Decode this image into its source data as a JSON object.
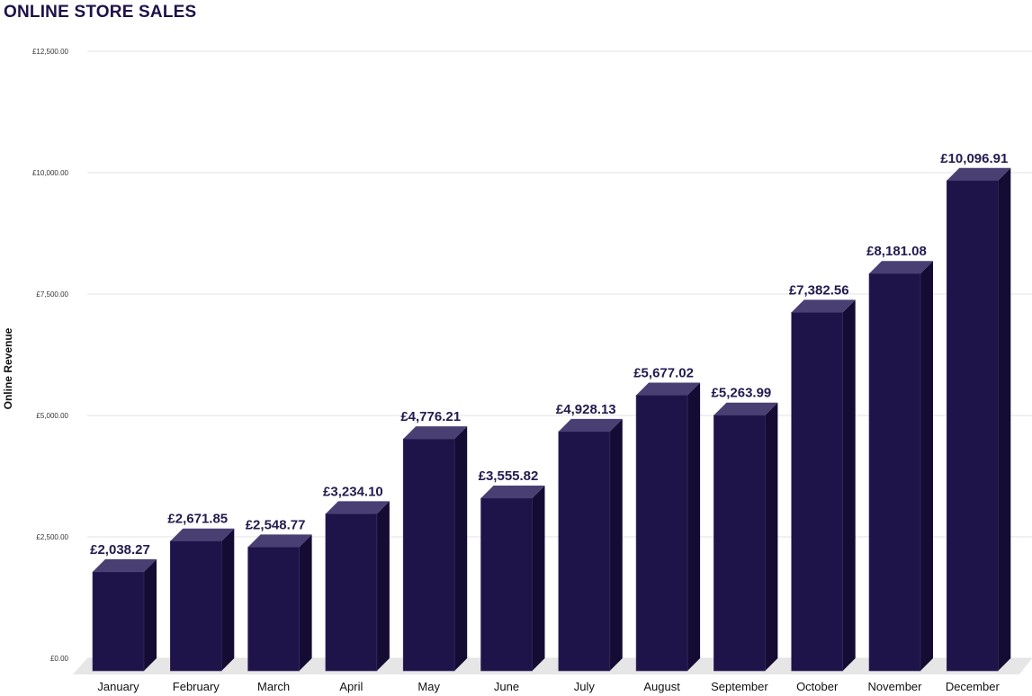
{
  "chart_data": {
    "type": "bar",
    "style": "3d",
    "title": "ONLINE STORE SALES",
    "xlabel": "",
    "ylabel": "Online Revenue",
    "categories": [
      "January",
      "February",
      "March",
      "April",
      "May",
      "June",
      "July",
      "August",
      "September",
      "October",
      "November",
      "December"
    ],
    "values": [
      2038.27,
      2671.85,
      2548.77,
      3234.1,
      4776.21,
      3555.82,
      4928.13,
      5677.02,
      5263.99,
      7382.56,
      8181.08,
      10096.91
    ],
    "value_labels": [
      "£2,038.27",
      "£2,671.85",
      "£2,548.77",
      "£3,234.10",
      "£4,776.21",
      "£3,555.82",
      "£4,928.13",
      "£5,677.02",
      "£5,263.99",
      "£7,382.56",
      "£8,181.08",
      "£10,096.91"
    ],
    "yticks": [
      0,
      2500,
      5000,
      7500,
      10000,
      12500
    ],
    "ytick_labels": [
      "£0.00",
      "£2,500.00",
      "£5,000.00",
      "£7,500.00",
      "£10,000.00",
      "£12,500.00"
    ],
    "ylim": [
      0,
      12500
    ],
    "grid": true,
    "legend": "none",
    "colors": {
      "bar_front": "#1f1449",
      "bar_side": "#140c33",
      "bar_top": "#4a3f73",
      "label": "#241a4f",
      "grid": "#e3e3e3",
      "floor": "#e6e6e6"
    }
  }
}
